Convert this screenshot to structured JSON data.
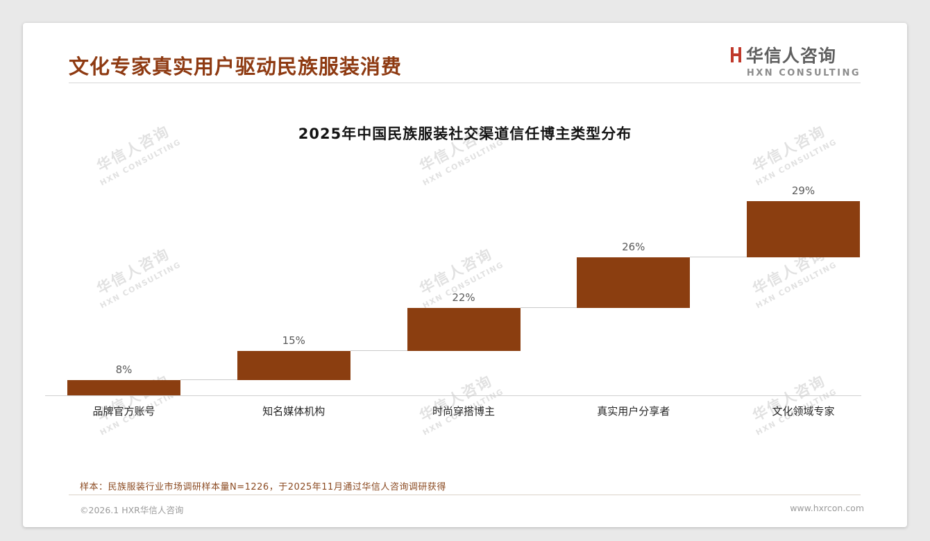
{
  "page": {
    "header": {
      "title": "文化专家真实用户驱动民族服装消费"
    },
    "logo": {
      "name": "华信人咨询",
      "subtitle": "HXN CONSULTING"
    },
    "watermark": {
      "line1": "华信人咨询",
      "line2": "HXN CONSULTING"
    },
    "note": "样本：民族服装行业市场调研样本量N=1226，于2025年11月通过华信人咨询调研获得",
    "footer": {
      "copyright": "©2026.1 HXR华信人咨询",
      "website": "www.hxrcon.com"
    }
  },
  "chart_data": {
    "type": "bar",
    "subtype": "waterfall-cumulative",
    "title": "2025年中国民族服装社交渠道信任博主类型分布",
    "categories": [
      "品牌官方账号",
      "知名媒体机构",
      "时尚穿搭博主",
      "真实用户分享者",
      "文化领域专家"
    ],
    "values": [
      8,
      15,
      22,
      26,
      29
    ],
    "value_labels": [
      "8%",
      "15%",
      "22%",
      "26%",
      "29%"
    ],
    "cumulative_tops": [
      8,
      23,
      45,
      71,
      100
    ],
    "xlabel": "",
    "ylabel": "",
    "ylim": [
      0,
      100
    ],
    "grid": false,
    "legend": false,
    "bar_color": "#8B3E10",
    "value_label_color": "#595959",
    "connector_color": "#c9c9c9"
  },
  "colors": {
    "title_brown": "#8E3A12",
    "bar_brown": "#8B3E10",
    "note_brown": "#8B4A21",
    "logo_red": "#C0392B",
    "footer_gray": "#9a9a9a"
  }
}
